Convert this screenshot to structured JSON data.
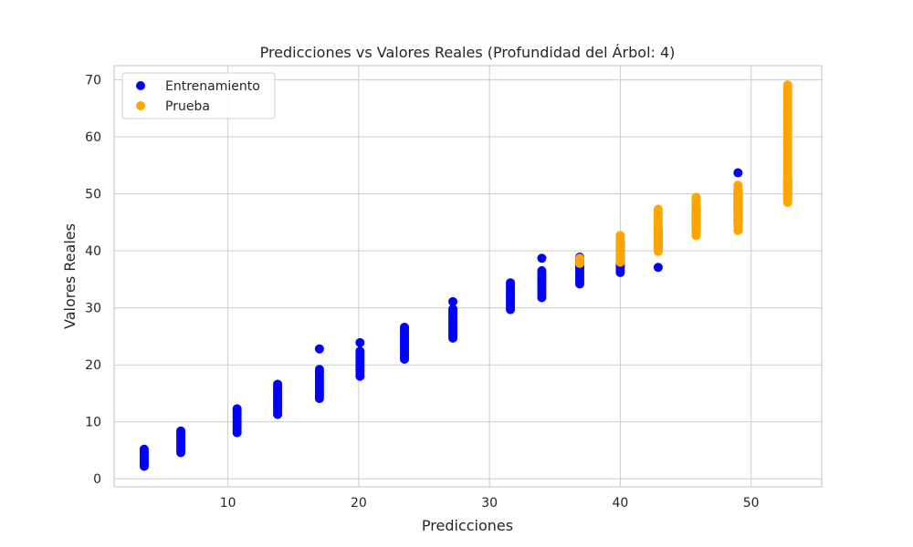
{
  "chart_data": {
    "type": "scatter",
    "title": "Predicciones vs Valores Reales (Profundidad del Árbol: 4)",
    "xlabel": "Predicciones",
    "ylabel": "Valores Reales",
    "xlim": [
      1.3,
      55.4
    ],
    "ylim": [
      -1.4,
      72.5
    ],
    "x_ticks": [
      10,
      20,
      30,
      40,
      50
    ],
    "y_ticks": [
      0,
      10,
      20,
      30,
      40,
      50,
      60,
      70
    ],
    "grid": true,
    "legend_position": "top-left",
    "series": [
      {
        "name": "Entrenamiento",
        "color": "#0000ff",
        "groups": [
          {
            "x": 3.6,
            "y_min": 2.2,
            "y_max": 5.2
          },
          {
            "x": 6.4,
            "y_min": 4.6,
            "y_max": 8.4
          },
          {
            "x": 10.7,
            "y_min": 8.1,
            "y_max": 12.3
          },
          {
            "x": 13.8,
            "y_min": 11.3,
            "y_max": 16.6
          },
          {
            "x": 17.0,
            "y_min": 14.1,
            "y_max": 19.2,
            "outliers": [
              22.8
            ]
          },
          {
            "x": 20.1,
            "y_min": 18.0,
            "y_max": 22.4,
            "outliers": [
              23.9
            ]
          },
          {
            "x": 23.5,
            "y_min": 21.0,
            "y_max": 26.6
          },
          {
            "x": 27.2,
            "y_min": 24.7,
            "y_max": 29.8,
            "outliers": [
              31.1
            ]
          },
          {
            "x": 31.6,
            "y_min": 29.7,
            "y_max": 34.4
          },
          {
            "x": 34.0,
            "y_min": 31.8,
            "y_max": 36.5,
            "outliers": [
              38.7
            ]
          },
          {
            "x": 36.9,
            "y_min": 34.2,
            "y_max": 38.9
          },
          {
            "x": 40.0,
            "y_min": 36.2,
            "y_max": 41.5
          },
          {
            "x": 42.9,
            "y_min": 40.5,
            "y_max": 43.8,
            "outliers": [
              37.1
            ]
          },
          {
            "x": 45.8,
            "y_min": 43.8,
            "y_max": 47.5
          },
          {
            "x": 49.0,
            "y_min": 45.2,
            "y_max": 50.6,
            "outliers": [
              53.7
            ]
          },
          {
            "x": 52.8,
            "y_min": 49.3,
            "y_max": 52.5
          }
        ]
      },
      {
        "name": "Prueba",
        "color": "#ffa500",
        "groups": [
          {
            "x": 36.9,
            "y_min": 37.8,
            "y_max": 38.7
          },
          {
            "x": 40.0,
            "y_min": 38.0,
            "y_max": 42.7
          },
          {
            "x": 42.9,
            "y_min": 39.9,
            "y_max": 47.3
          },
          {
            "x": 45.8,
            "y_min": 42.7,
            "y_max": 49.4
          },
          {
            "x": 49.0,
            "y_min": 43.6,
            "y_max": 51.5
          },
          {
            "x": 52.8,
            "y_min": 48.5,
            "y_max": 69.1
          }
        ]
      }
    ]
  }
}
